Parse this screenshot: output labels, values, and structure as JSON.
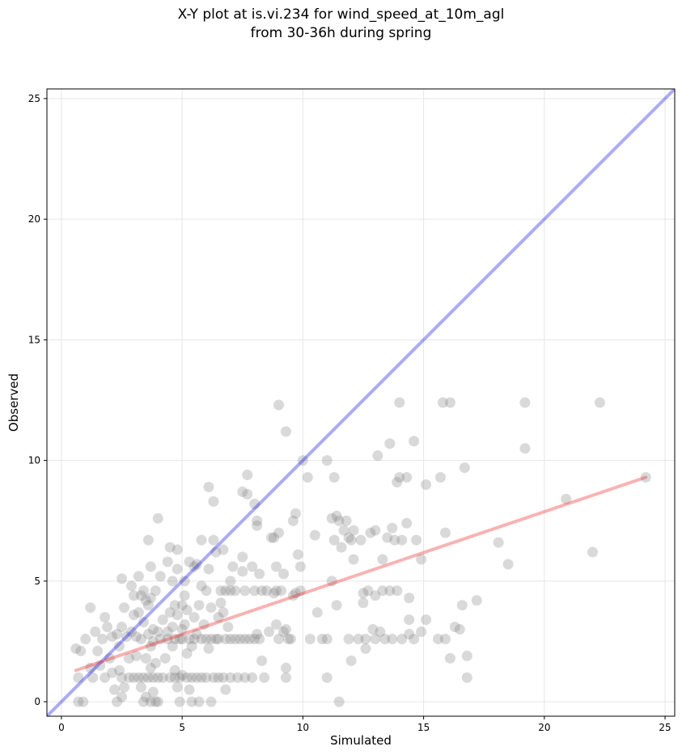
{
  "chart_data": {
    "type": "scatter",
    "title_line1": "X-Y plot at is.vi.234 for wind_speed_at_10m_agl",
    "title_line2": "from 30-36h during spring",
    "xlabel": "Simulated",
    "ylabel": "Observed",
    "xlim": [
      -0.6,
      25.4
    ],
    "ylim": [
      -0.6,
      25.4
    ],
    "xticks": [
      0,
      5,
      10,
      15,
      20,
      25
    ],
    "yticks": [
      0,
      5,
      10,
      15,
      20,
      25
    ],
    "grid": true,
    "colors": {
      "points": "#808080",
      "identity_line": "#0000ee",
      "fit_line": "#ee2222"
    },
    "identity_line": {
      "x": [
        -0.6,
        25.4
      ],
      "y": [
        -0.6,
        25.4
      ]
    },
    "fit_line": {
      "x": [
        0.6,
        24.2
      ],
      "y": [
        1.3,
        9.3
      ]
    },
    "points": [
      [
        0.6,
        2.2
      ],
      [
        0.7,
        1.0
      ],
      [
        0.7,
        0.0
      ],
      [
        0.8,
        2.1
      ],
      [
        0.9,
        0.0
      ],
      [
        1.0,
        2.6
      ],
      [
        1.2,
        3.9
      ],
      [
        1.2,
        1.4
      ],
      [
        1.3,
        1.0
      ],
      [
        1.4,
        2.9
      ],
      [
        1.5,
        2.1
      ],
      [
        1.6,
        1.5
      ],
      [
        1.7,
        2.6
      ],
      [
        1.8,
        1.0
      ],
      [
        1.8,
        3.5
      ],
      [
        1.9,
        3.1
      ],
      [
        2.0,
        1.8
      ],
      [
        2.1,
        2.7
      ],
      [
        2.1,
        1.2
      ],
      [
        2.2,
        0.5
      ],
      [
        2.3,
        2.8
      ],
      [
        2.3,
        0.0
      ],
      [
        2.4,
        1.3
      ],
      [
        2.4,
        2.3
      ],
      [
        2.5,
        3.1
      ],
      [
        2.5,
        1.0
      ],
      [
        2.5,
        5.1
      ],
      [
        2.5,
        0.2
      ],
      [
        2.6,
        0.6
      ],
      [
        2.6,
        3.9
      ],
      [
        2.7,
        2.7
      ],
      [
        2.8,
        1.0
      ],
      [
        2.8,
        1.8
      ],
      [
        2.9,
        2.9
      ],
      [
        2.9,
        4.8
      ],
      [
        3.0,
        3.6
      ],
      [
        3.0,
        1.0
      ],
      [
        3.0,
        4.4
      ],
      [
        3.1,
        2.7
      ],
      [
        3.1,
        1.9
      ],
      [
        3.2,
        3.7
      ],
      [
        3.2,
        5.2
      ],
      [
        3.2,
        1.0
      ],
      [
        3.3,
        0.6
      ],
      [
        3.3,
        4.4
      ],
      [
        3.3,
        2.6
      ],
      [
        3.4,
        0.0
      ],
      [
        3.4,
        3.3
      ],
      [
        3.4,
        1.0
      ],
      [
        3.4,
        4.6
      ],
      [
        3.5,
        0.2
      ],
      [
        3.5,
        1.8
      ],
      [
        3.5,
        4.2
      ],
      [
        3.6,
        2.8
      ],
      [
        3.6,
        1.0
      ],
      [
        3.6,
        4.0
      ],
      [
        3.6,
        6.7
      ],
      [
        3.7,
        2.3
      ],
      [
        3.7,
        0.0
      ],
      [
        3.7,
        1.4
      ],
      [
        3.7,
        5.6
      ],
      [
        3.7,
        4.3
      ],
      [
        3.8,
        3.0
      ],
      [
        3.8,
        1.0
      ],
      [
        3.8,
        2.5
      ],
      [
        3.8,
        0.4
      ],
      [
        3.9,
        4.6
      ],
      [
        3.9,
        1.6
      ],
      [
        3.9,
        0.0
      ],
      [
        4.0,
        7.6
      ],
      [
        4.0,
        2.9
      ],
      [
        4.0,
        1.0
      ],
      [
        4.0,
        0.0
      ],
      [
        4.1,
        2.6
      ],
      [
        4.1,
        5.2
      ],
      [
        4.2,
        3.4
      ],
      [
        4.2,
        1.0
      ],
      [
        4.3,
        1.8
      ],
      [
        4.4,
        5.8
      ],
      [
        4.4,
        2.6
      ],
      [
        4.4,
        2.9
      ],
      [
        4.5,
        6.4
      ],
      [
        4.5,
        1.0
      ],
      [
        4.5,
        3.7
      ],
      [
        4.6,
        5.0
      ],
      [
        4.6,
        2.3
      ],
      [
        4.6,
        3.1
      ],
      [
        4.7,
        1.0
      ],
      [
        4.7,
        1.3
      ],
      [
        4.7,
        2.6
      ],
      [
        4.7,
        4.0
      ],
      [
        4.8,
        6.3
      ],
      [
        4.8,
        0.6
      ],
      [
        4.8,
        5.5
      ],
      [
        4.8,
        3.6
      ],
      [
        4.9,
        2.6
      ],
      [
        4.9,
        1.0
      ],
      [
        4.9,
        0.0
      ],
      [
        5.0,
        4.0
      ],
      [
        5.0,
        3.0
      ],
      [
        5.0,
        1.1
      ],
      [
        5.0,
        2.6
      ],
      [
        5.1,
        4.4
      ],
      [
        5.1,
        3.2
      ],
      [
        5.1,
        5.0
      ],
      [
        5.2,
        1.0
      ],
      [
        5.2,
        2.0
      ],
      [
        5.2,
        3.8
      ],
      [
        5.3,
        5.8
      ],
      [
        5.3,
        2.6
      ],
      [
        5.3,
        0.5
      ],
      [
        5.4,
        1.0
      ],
      [
        5.4,
        2.3
      ],
      [
        5.4,
        0.0
      ],
      [
        5.5,
        3.5
      ],
      [
        5.5,
        5.6
      ],
      [
        5.5,
        2.6
      ],
      [
        5.6,
        1.0
      ],
      [
        5.6,
        5.7
      ],
      [
        5.6,
        2.8
      ],
      [
        5.7,
        4.0
      ],
      [
        5.7,
        0.0
      ],
      [
        5.8,
        6.7
      ],
      [
        5.8,
        1.0
      ],
      [
        5.8,
        2.6
      ],
      [
        5.8,
        4.8
      ],
      [
        5.9,
        3.2
      ],
      [
        6.0,
        2.6
      ],
      [
        6.0,
        4.6
      ],
      [
        6.0,
        1.0
      ],
      [
        6.1,
        5.5
      ],
      [
        6.1,
        8.9
      ],
      [
        6.1,
        2.2
      ],
      [
        6.2,
        3.9
      ],
      [
        6.2,
        0.0
      ],
      [
        6.2,
        2.6
      ],
      [
        6.3,
        6.7
      ],
      [
        6.3,
        8.3
      ],
      [
        6.3,
        1.0
      ],
      [
        6.4,
        2.6
      ],
      [
        6.4,
        6.2
      ],
      [
        6.5,
        2.6
      ],
      [
        6.5,
        1.0
      ],
      [
        6.5,
        3.5
      ],
      [
        6.6,
        4.6
      ],
      [
        6.6,
        4.1
      ],
      [
        6.7,
        3.7
      ],
      [
        6.7,
        1.0
      ],
      [
        6.7,
        6.3
      ],
      [
        6.8,
        4.6
      ],
      [
        6.8,
        2.6
      ],
      [
        6.8,
        0.5
      ],
      [
        6.9,
        3.1
      ],
      [
        7.0,
        4.6
      ],
      [
        7.0,
        1.0
      ],
      [
        7.0,
        2.6
      ],
      [
        7.0,
        5.0
      ],
      [
        7.1,
        5.6
      ],
      [
        7.2,
        2.6
      ],
      [
        7.2,
        4.6
      ],
      [
        7.3,
        1.0
      ],
      [
        7.4,
        2.6
      ],
      [
        7.5,
        5.4
      ],
      [
        7.5,
        8.7
      ],
      [
        7.5,
        6.0
      ],
      [
        7.6,
        1.0
      ],
      [
        7.6,
        2.6
      ],
      [
        7.6,
        4.6
      ],
      [
        7.7,
        8.6
      ],
      [
        7.7,
        9.4
      ],
      [
        7.8,
        2.6
      ],
      [
        7.9,
        5.6
      ],
      [
        7.9,
        1.0
      ],
      [
        8.0,
        2.6
      ],
      [
        8.0,
        4.6
      ],
      [
        8.0,
        8.2
      ],
      [
        8.1,
        7.3
      ],
      [
        8.1,
        7.5
      ],
      [
        8.1,
        2.8
      ],
      [
        8.2,
        5.3
      ],
      [
        8.2,
        2.6
      ],
      [
        8.3,
        4.6
      ],
      [
        8.3,
        1.7
      ],
      [
        8.4,
        1.0
      ],
      [
        8.5,
        4.6
      ],
      [
        8.6,
        2.9
      ],
      [
        8.7,
        6.8
      ],
      [
        8.8,
        6.8
      ],
      [
        8.8,
        4.5
      ],
      [
        8.9,
        4.6
      ],
      [
        8.9,
        3.2
      ],
      [
        8.9,
        5.6
      ],
      [
        9.0,
        7.0
      ],
      [
        9.0,
        12.3
      ],
      [
        9.0,
        2.6
      ],
      [
        9.1,
        4.6
      ],
      [
        9.2,
        2.9
      ],
      [
        9.2,
        5.3
      ],
      [
        9.3,
        3.0
      ],
      [
        9.3,
        11.2
      ],
      [
        9.3,
        1.0
      ],
      [
        9.3,
        1.4
      ],
      [
        9.4,
        2.6
      ],
      [
        9.5,
        2.6
      ],
      [
        9.6,
        4.4
      ],
      [
        9.6,
        7.5
      ],
      [
        9.7,
        4.5
      ],
      [
        9.7,
        7.8
      ],
      [
        9.8,
        6.1
      ],
      [
        9.9,
        5.6
      ],
      [
        9.9,
        4.6
      ],
      [
        10.0,
        10.0
      ],
      [
        10.2,
        9.3
      ],
      [
        10.3,
        2.6
      ],
      [
        10.5,
        6.9
      ],
      [
        10.6,
        3.7
      ],
      [
        10.8,
        2.6
      ],
      [
        11.0,
        2.6
      ],
      [
        11.0,
        10.0
      ],
      [
        11.0,
        1.0
      ],
      [
        11.2,
        7.6
      ],
      [
        11.2,
        5.0
      ],
      [
        11.3,
        9.3
      ],
      [
        11.3,
        6.7
      ],
      [
        11.4,
        7.7
      ],
      [
        11.4,
        4.0
      ],
      [
        11.5,
        0.0
      ],
      [
        11.5,
        7.5
      ],
      [
        11.6,
        6.4
      ],
      [
        11.7,
        7.1
      ],
      [
        11.8,
        7.5
      ],
      [
        11.9,
        6.8
      ],
      [
        11.9,
        2.6
      ],
      [
        12.0,
        6.7
      ],
      [
        12.0,
        1.7
      ],
      [
        12.1,
        5.9
      ],
      [
        12.1,
        7.1
      ],
      [
        12.3,
        2.6
      ],
      [
        12.4,
        6.7
      ],
      [
        12.5,
        4.5
      ],
      [
        12.5,
        4.1
      ],
      [
        12.6,
        2.6
      ],
      [
        12.6,
        2.2
      ],
      [
        12.7,
        4.6
      ],
      [
        12.8,
        7.0
      ],
      [
        12.9,
        3.0
      ],
      [
        13.0,
        2.6
      ],
      [
        13.0,
        7.1
      ],
      [
        13.0,
        4.4
      ],
      [
        13.1,
        10.2
      ],
      [
        13.2,
        2.9
      ],
      [
        13.3,
        5.9
      ],
      [
        13.3,
        4.6
      ],
      [
        13.4,
        2.6
      ],
      [
        13.5,
        6.8
      ],
      [
        13.6,
        4.6
      ],
      [
        13.6,
        10.7
      ],
      [
        13.7,
        7.2
      ],
      [
        13.7,
        2.6
      ],
      [
        13.8,
        6.7
      ],
      [
        13.9,
        4.6
      ],
      [
        13.9,
        9.1
      ],
      [
        14.0,
        12.4
      ],
      [
        14.0,
        9.3
      ],
      [
        14.1,
        6.7
      ],
      [
        14.1,
        2.6
      ],
      [
        14.3,
        9.3
      ],
      [
        14.3,
        7.4
      ],
      [
        14.4,
        3.4
      ],
      [
        14.4,
        2.8
      ],
      [
        14.4,
        4.3
      ],
      [
        14.6,
        2.6
      ],
      [
        14.6,
        10.8
      ],
      [
        14.7,
        6.7
      ],
      [
        14.9,
        2.9
      ],
      [
        14.9,
        5.9
      ],
      [
        15.1,
        9.0
      ],
      [
        15.1,
        3.4
      ],
      [
        15.6,
        2.6
      ],
      [
        15.7,
        9.3
      ],
      [
        15.8,
        12.4
      ],
      [
        15.9,
        7.0
      ],
      [
        15.9,
        2.6
      ],
      [
        16.1,
        1.8
      ],
      [
        16.1,
        12.4
      ],
      [
        16.3,
        3.1
      ],
      [
        16.5,
        3.0
      ],
      [
        16.6,
        4.0
      ],
      [
        16.7,
        9.7
      ],
      [
        16.8,
        1.0
      ],
      [
        16.8,
        1.9
      ],
      [
        17.2,
        4.2
      ],
      [
        18.1,
        6.6
      ],
      [
        18.5,
        5.7
      ],
      [
        19.2,
        10.5
      ],
      [
        19.2,
        12.4
      ],
      [
        20.9,
        8.4
      ],
      [
        22.0,
        6.2
      ],
      [
        22.3,
        12.4
      ],
      [
        24.2,
        9.3
      ]
    ]
  }
}
